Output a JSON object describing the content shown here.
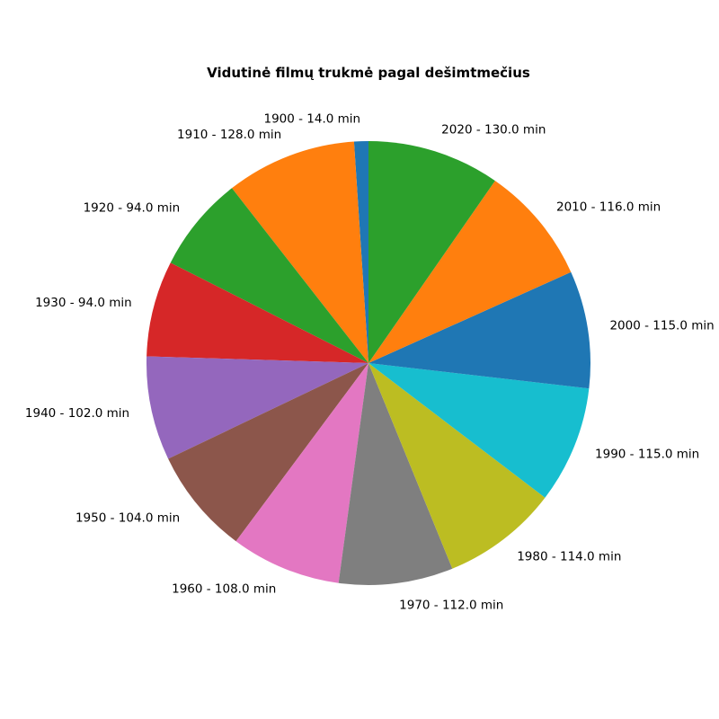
{
  "chart_data": {
    "type": "pie",
    "title": "Vidutinė filmų trukmė pagal dešimtmečius",
    "categories": [
      "1900",
      "1910",
      "1920",
      "1930",
      "1940",
      "1950",
      "1960",
      "1970",
      "1980",
      "1990",
      "2000",
      "2010",
      "2020"
    ],
    "values": [
      14.0,
      128.0,
      94.0,
      94.0,
      102.0,
      104.0,
      108.0,
      112.0,
      114.0,
      115.0,
      115.0,
      116.0,
      130.0
    ],
    "labels": [
      "1900 - 14.0 min",
      "1910 - 128.0 min",
      "1920 - 94.0 min",
      "1930 - 94.0 min",
      "1940 - 102.0 min",
      "1950 - 104.0 min",
      "1960 - 108.0 min",
      "1970 - 112.0 min",
      "1980 - 114.0 min",
      "1990 - 115.0 min",
      "2000 - 115.0 min",
      "2010 - 116.0 min",
      "2020 - 130.0 min"
    ],
    "colors": [
      "#1f77b4",
      "#ff7f0e",
      "#2ca02c",
      "#d62728",
      "#9467bd",
      "#8c564b",
      "#e377c2",
      "#7f7f7f",
      "#bcbd22",
      "#17becf",
      "#1f77b4",
      "#ff7f0e",
      "#2ca02c"
    ],
    "start_angle_deg": 90,
    "direction": "counterclockwise"
  }
}
